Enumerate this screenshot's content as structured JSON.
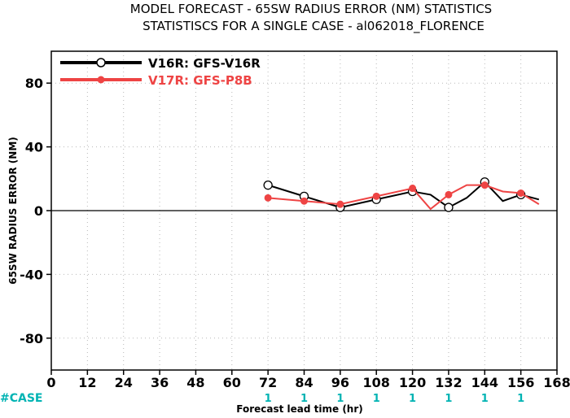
{
  "chart_data": {
    "type": "line",
    "title": "MODEL FORECAST - 65SW RADIUS ERROR (NM) STATISTICS",
    "subtitle": "STATISTISCS FOR A SINGLE CASE - al062018_FLORENCE",
    "xlabel": "Forecast lead time (hr)",
    "ylabel": "65SW RADIUS ERROR (NM)",
    "xlim": [
      0,
      168
    ],
    "ylim": [
      -100,
      100
    ],
    "x_ticks": [
      0,
      12,
      24,
      36,
      48,
      60,
      72,
      84,
      96,
      108,
      120,
      132,
      144,
      156,
      168
    ],
    "y_ticks": [
      -80,
      -40,
      0,
      40,
      80
    ],
    "grid": true,
    "legend_position": "top-left",
    "series": [
      {
        "name": "V16R: GFS-V16R",
        "color": "#000000",
        "marker": "open-circle",
        "x": [
          72,
          84,
          96,
          108,
          120,
          126,
          132,
          138,
          144,
          150,
          156,
          162
        ],
        "y": [
          16,
          9,
          2,
          7,
          12,
          10,
          2,
          8,
          18,
          6,
          10,
          7
        ],
        "marker_x": [
          72,
          84,
          96,
          108,
          120,
          132,
          144,
          156
        ]
      },
      {
        "name": "V17R: GFS-P8B",
        "color": "#ee4444",
        "marker": "filled-circle",
        "x": [
          72,
          84,
          96,
          108,
          120,
          126,
          132,
          138,
          144,
          150,
          156,
          162
        ],
        "y": [
          8,
          6,
          4,
          9,
          14,
          1,
          10,
          16,
          16,
          12,
          11,
          4
        ],
        "marker_x": [
          72,
          84,
          96,
          108,
          120,
          132,
          144,
          156
        ]
      }
    ],
    "case_label": "#CASE",
    "cases": [
      {
        "x": 72,
        "n": "1"
      },
      {
        "x": 84,
        "n": "1"
      },
      {
        "x": 96,
        "n": "1"
      },
      {
        "x": 108,
        "n": "1"
      },
      {
        "x": 120,
        "n": "1"
      },
      {
        "x": 132,
        "n": "1"
      },
      {
        "x": 144,
        "n": "1"
      },
      {
        "x": 156,
        "n": "1"
      }
    ]
  }
}
